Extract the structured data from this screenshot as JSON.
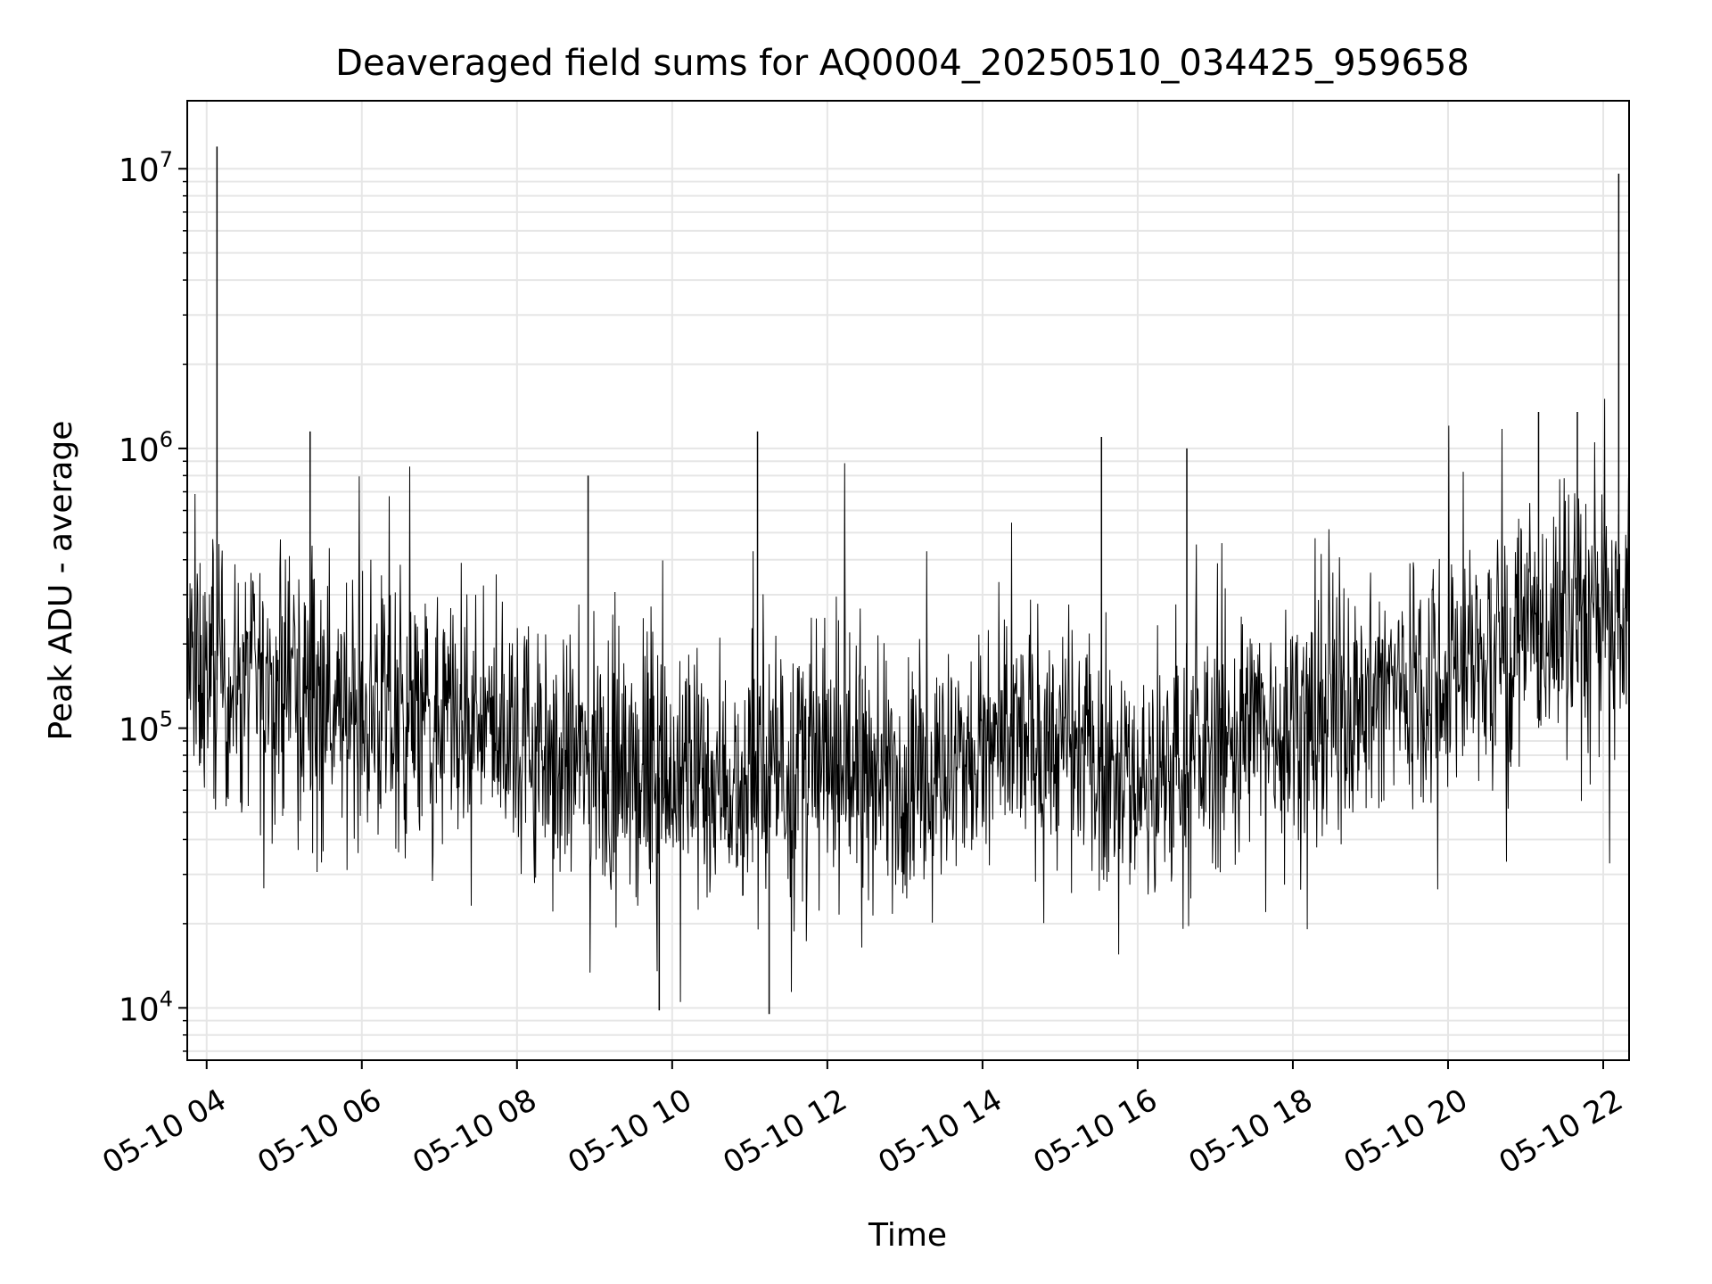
{
  "chart_data": {
    "type": "line",
    "title": "Deaveraged field sums for AQ0004_20250510_034425_959658",
    "xlabel": "Time",
    "ylabel": "Peak ADU - average",
    "yscale": "log",
    "xlim": [
      "2025-05-10T03:45",
      "2025-05-10T22:20"
    ],
    "ylim": [
      6500,
      17500000
    ],
    "x_ticks": [
      {
        "value": "2025-05-10T04:00",
        "label": "05-10 04"
      },
      {
        "value": "2025-05-10T06:00",
        "label": "05-10 06"
      },
      {
        "value": "2025-05-10T08:00",
        "label": "05-10 08"
      },
      {
        "value": "2025-05-10T10:00",
        "label": "05-10 10"
      },
      {
        "value": "2025-05-10T12:00",
        "label": "05-10 12"
      },
      {
        "value": "2025-05-10T14:00",
        "label": "05-10 14"
      },
      {
        "value": "2025-05-10T16:00",
        "label": "05-10 16"
      },
      {
        "value": "2025-05-10T18:00",
        "label": "05-10 18"
      },
      {
        "value": "2025-05-10T20:00",
        "label": "05-10 20"
      },
      {
        "value": "2025-05-10T22:00",
        "label": "05-10 22"
      }
    ],
    "y_ticks": [
      {
        "value": 10000,
        "base": "10",
        "exp": "4"
      },
      {
        "value": 100000,
        "base": "10",
        "exp": "5"
      },
      {
        "value": 1000000,
        "base": "10",
        "exp": "6"
      },
      {
        "value": 10000000,
        "base": "10",
        "exp": "7"
      }
    ],
    "grid": true,
    "line_color": "#000000",
    "grid_color": "#e6e6e6",
    "series": [
      {
        "x": [
          "2025-05-10T03:45",
          "2025-05-10T04:00",
          "2025-05-10T04:30",
          "2025-05-10T05:00",
          "2025-05-10T05:30",
          "2025-05-10T06:00",
          "2025-05-10T06:30",
          "2025-05-10T07:00",
          "2025-05-10T07:30",
          "2025-05-10T08:00",
          "2025-05-10T08:30",
          "2025-05-10T09:00",
          "2025-05-10T09:30",
          "2025-05-10T10:00",
          "2025-05-10T10:30",
          "2025-05-10T11:00",
          "2025-05-10T11:30",
          "2025-05-10T12:00",
          "2025-05-10T12:30",
          "2025-05-10T13:00",
          "2025-05-10T13:30",
          "2025-05-10T14:00",
          "2025-05-10T14:30",
          "2025-05-10T15:00",
          "2025-05-10T15:30",
          "2025-05-10T16:00",
          "2025-05-10T16:30",
          "2025-05-10T17:00",
          "2025-05-10T17:30",
          "2025-05-10T18:00",
          "2025-05-10T18:30",
          "2025-05-10T19:00",
          "2025-05-10T19:30",
          "2025-05-10T20:00",
          "2025-05-10T20:30",
          "2025-05-10T21:00",
          "2025-05-10T21:30",
          "2025-05-10T22:00",
          "2025-05-10T22:20"
        ],
        "y": [
          170000,
          150000,
          145000,
          140000,
          135000,
          110000,
          105000,
          100000,
          100000,
          95000,
          80000,
          75000,
          70000,
          65000,
          68000,
          65000,
          70000,
          72000,
          70000,
          68000,
          70000,
          80000,
          90000,
          85000,
          80000,
          65000,
          70000,
          85000,
          100000,
          110000,
          120000,
          130000,
          150000,
          160000,
          180000,
          200000,
          250000,
          260000,
          240000
        ]
      }
    ],
    "spikes": [
      {
        "x": "2025-05-10T04:08",
        "y": 12000000
      },
      {
        "x": "2025-05-10T05:20",
        "y": 1150000
      },
      {
        "x": "2025-05-10T08:55",
        "y": 800000
      },
      {
        "x": "2025-05-10T11:06",
        "y": 1150000
      },
      {
        "x": "2025-05-10T15:32",
        "y": 1100000
      },
      {
        "x": "2025-05-10T16:38",
        "y": 1000000
      },
      {
        "x": "2025-05-10T21:10",
        "y": 1350000
      },
      {
        "x": "2025-05-10T21:40",
        "y": 1350000
      },
      {
        "x": "2025-05-10T22:12",
        "y": 9600000
      },
      {
        "x": "2025-05-10T11:15",
        "y": 9500
      },
      {
        "x": "2025-05-10T09:50",
        "y": 9800
      }
    ]
  }
}
